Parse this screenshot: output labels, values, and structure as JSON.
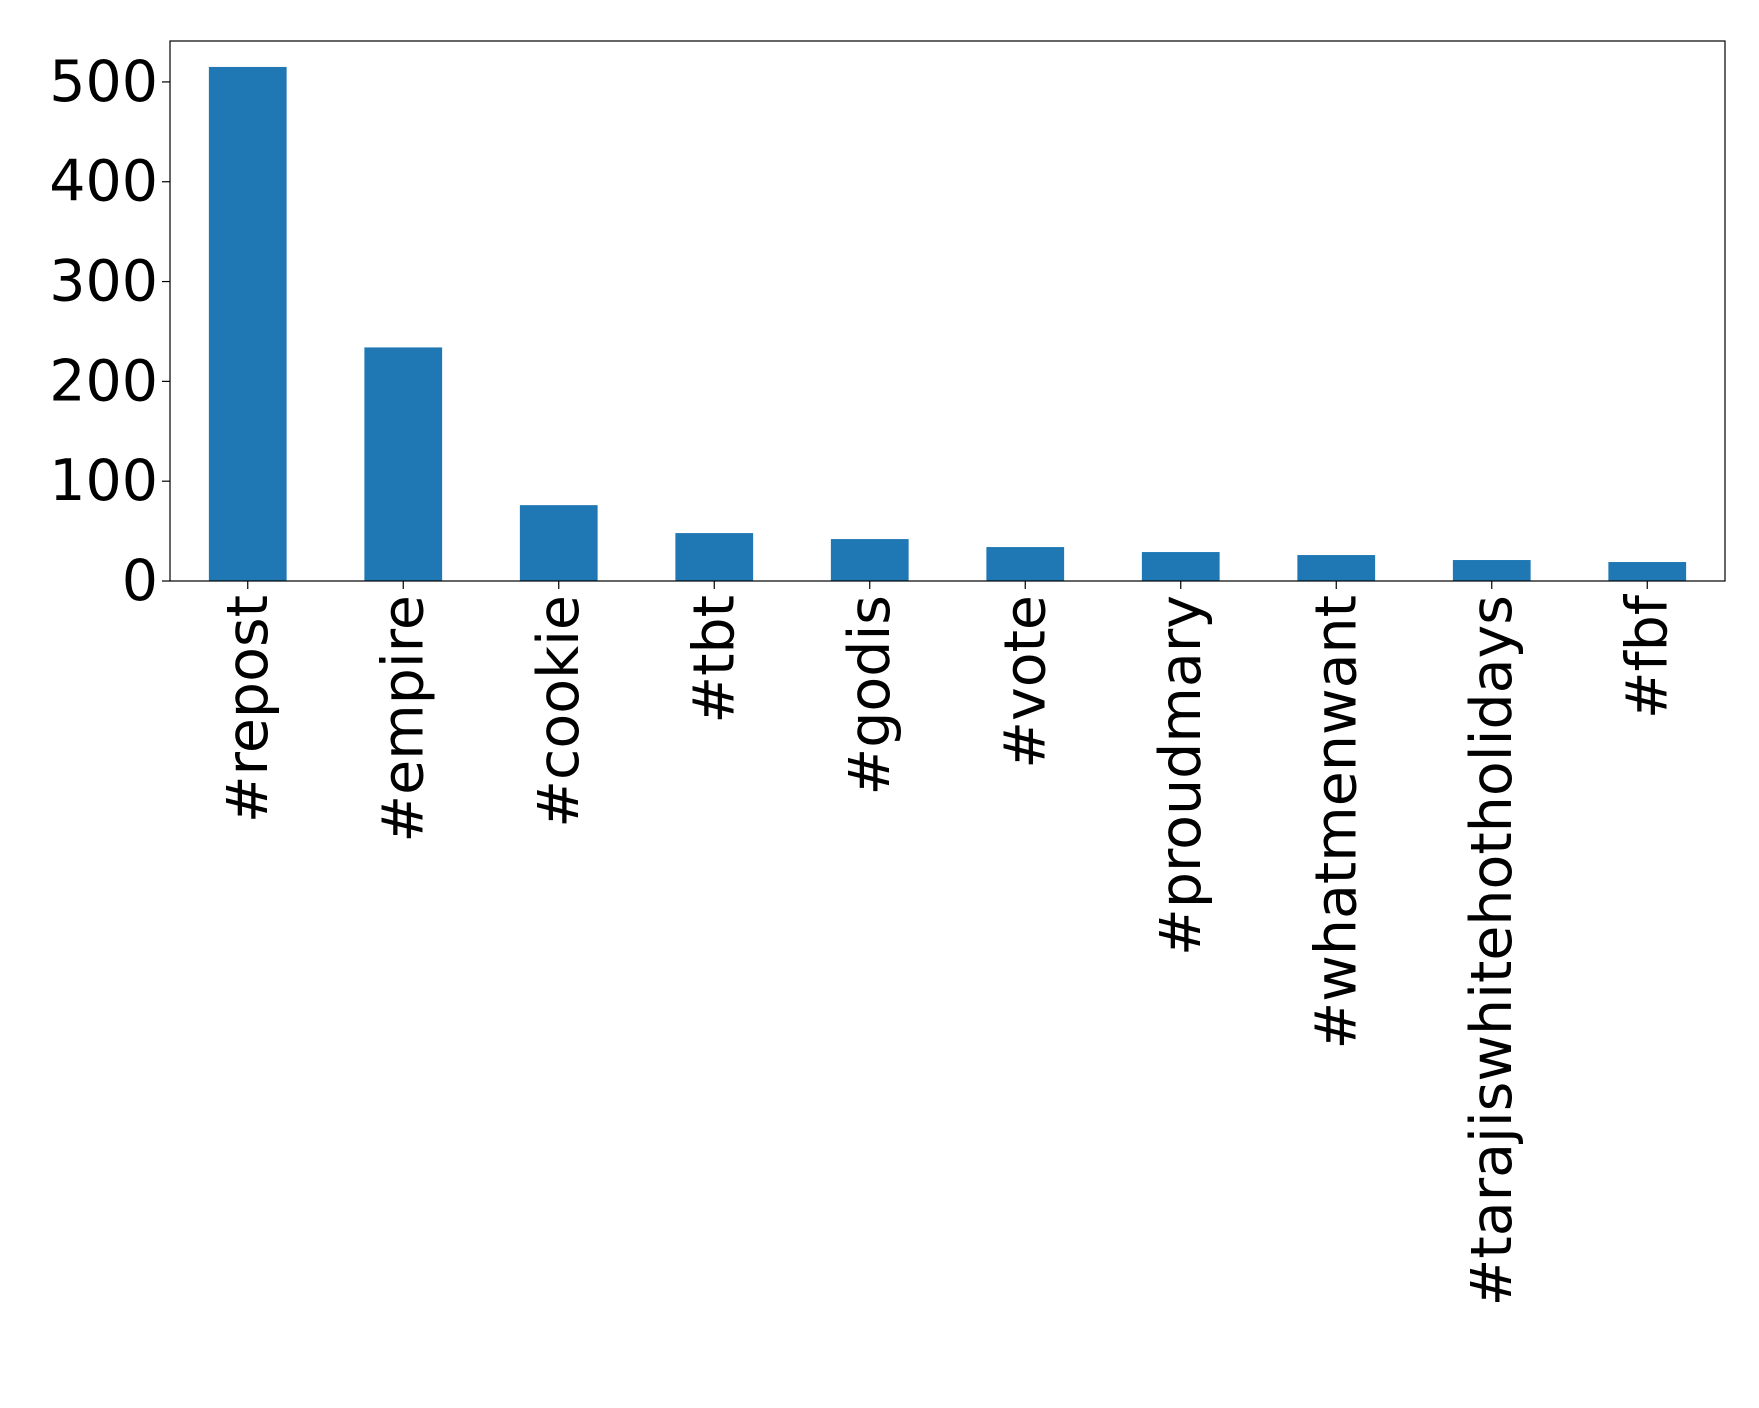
{
  "chart_data": {
    "type": "bar",
    "title": "",
    "xlabel": "",
    "ylabel": "",
    "categories": [
      "#repost",
      "#empire",
      "#cookie",
      "#tbt",
      "#godis",
      "#vote",
      "#proudmary",
      "#whatmenwant",
      "#tarajiswhitehotholidays",
      "#fbf"
    ],
    "values": [
      515,
      234,
      76,
      48,
      42,
      34,
      29,
      26,
      21,
      19
    ],
    "ylim": [
      0,
      541
    ],
    "yticks": [
      0,
      100,
      200,
      300,
      400,
      500
    ],
    "grid": false,
    "legend": "none",
    "bar_color": "#1f77b4"
  }
}
